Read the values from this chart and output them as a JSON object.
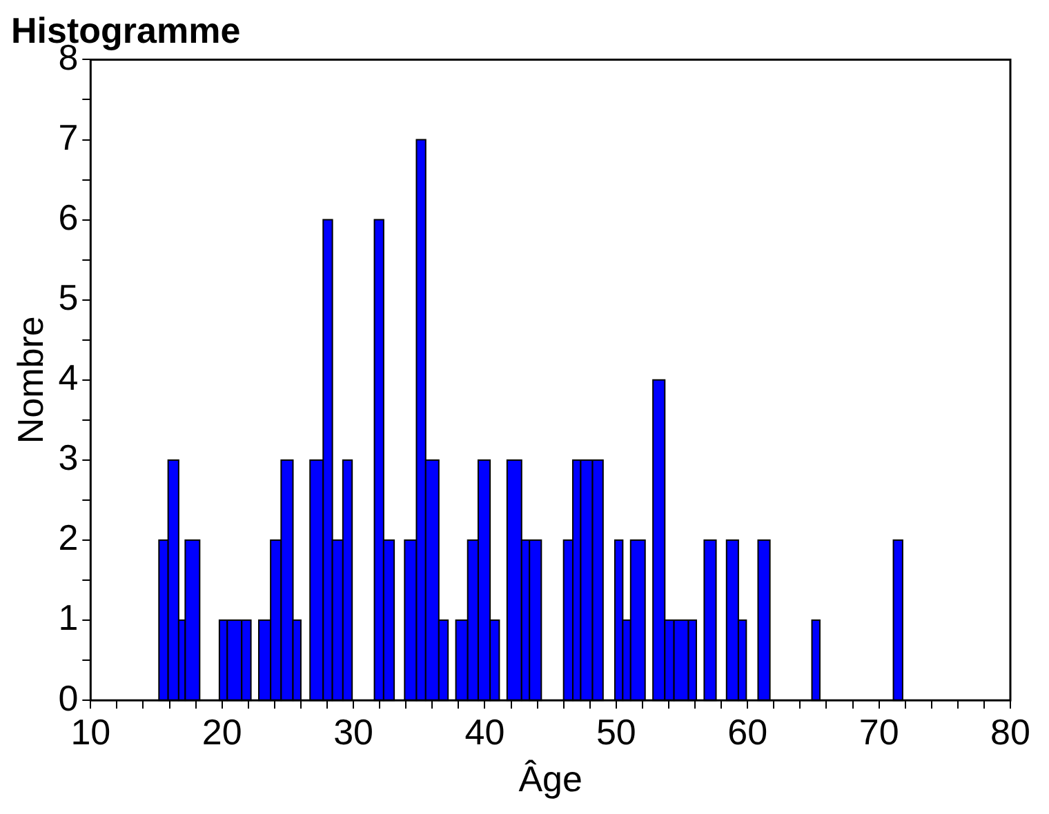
{
  "chart_data": {
    "type": "histogram",
    "title": "Histogramme",
    "xlabel": "Âge",
    "ylabel": "Nombre",
    "color": "#0000ff",
    "bins": [
      15.2,
      15.9,
      16.7,
      17.2,
      18.3,
      19.8,
      20.4,
      21.5,
      22.2,
      22.8,
      23.7,
      24.5,
      25.4,
      26.0,
      26.7,
      27.7,
      28.4,
      29.2,
      29.9,
      31.6,
      32.3,
      33.1,
      33.9,
      34.8,
      35.5,
      36.5,
      37.2,
      37.8,
      38.7,
      39.5,
      40.4,
      41.1,
      41.7,
      42.8,
      43.4,
      44.3,
      46.0,
      46.7,
      47.3,
      48.2,
      49.0,
      49.9,
      50.5,
      51.1,
      52.2,
      52.8,
      53.7,
      54.4,
      55.5,
      56.1,
      56.7,
      57.6,
      58.4,
      59.3,
      59.9,
      60.8,
      61.7,
      64.9,
      65.5,
      71.1,
      71.8
    ],
    "values": [
      2,
      3,
      1,
      2,
      0,
      1,
      1,
      1,
      0,
      1,
      2,
      3,
      1,
      0,
      3,
      6,
      2,
      3,
      0,
      6,
      2,
      0,
      2,
      7,
      3,
      1,
      0,
      1,
      2,
      3,
      1,
      0,
      3,
      2,
      2,
      0,
      2,
      3,
      3,
      3,
      0,
      2,
      1,
      2,
      0,
      4,
      1,
      1,
      1,
      0,
      2,
      0,
      2,
      1,
      0,
      2,
      0,
      1,
      0,
      2
    ],
    "xlim": [
      10,
      80
    ],
    "xticks": [
      10,
      {
        "value": 12,
        "label": null
      },
      {
        "value": 14,
        "label": null
      },
      {
        "value": 16,
        "label": null
      },
      {
        "value": 18,
        "label": null
      },
      20,
      {
        "value": 22,
        "label": null
      },
      {
        "value": 24,
        "label": null
      },
      {
        "value": 26,
        "label": null
      },
      {
        "value": 28,
        "label": null
      },
      30,
      {
        "value": 32,
        "label": null
      },
      {
        "value": 34,
        "label": null
      },
      {
        "value": 36,
        "label": null
      },
      {
        "value": 38,
        "label": null
      },
      40,
      {
        "value": 42,
        "label": null
      },
      {
        "value": 44,
        "label": null
      },
      {
        "value": 46,
        "label": null
      },
      {
        "value": 48,
        "label": null
      },
      50,
      {
        "value": 52,
        "label": null
      },
      {
        "value": 54,
        "label": null
      },
      {
        "value": 56,
        "label": null
      },
      {
        "value": 58,
        "label": null
      },
      60,
      {
        "value": 62,
        "label": null
      },
      {
        "value": 64,
        "label": null
      },
      {
        "value": 66,
        "label": null
      },
      {
        "value": 68,
        "label": null
      },
      70,
      {
        "value": 72,
        "label": null
      },
      {
        "value": 74,
        "label": null
      },
      {
        "value": 76,
        "label": null
      },
      {
        "value": 78,
        "label": null
      },
      80
    ],
    "ylim": [
      0,
      8
    ],
    "yticks": [
      0,
      {
        "value": 0.5,
        "label": null
      },
      1,
      {
        "value": 1.5,
        "label": null
      },
      2,
      {
        "value": 2.5,
        "label": null
      },
      3,
      {
        "value": 3.5,
        "label": null
      },
      4,
      {
        "value": 4.5,
        "label": null
      },
      5,
      {
        "value": 5.5,
        "label": null
      },
      6,
      {
        "value": 6.5,
        "label": null
      },
      7,
      {
        "value": 7.5,
        "label": null
      },
      8
    ],
    "grid": false,
    "legend": false
  }
}
